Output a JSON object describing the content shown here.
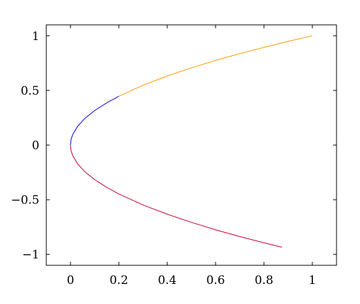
{
  "chart_data": {
    "type": "line",
    "title": "",
    "xlabel": "",
    "ylabel": "",
    "xlim": [
      -0.1,
      1.1
    ],
    "ylim": [
      -1.1,
      1.1
    ],
    "grid": false,
    "x_ticks": [
      0,
      0.2,
      0.4,
      0.6,
      0.8,
      1
    ],
    "x_tick_labels": [
      "0",
      "0.2",
      "0.4",
      "0.6",
      "0.8",
      "1"
    ],
    "y_ticks": [
      -1,
      -0.5,
      0,
      0.5,
      1
    ],
    "y_tick_labels": [
      "−1",
      "−0.5",
      "0",
      "0.5",
      "1"
    ],
    "series": [
      {
        "color": "#0000ff",
        "x": [
          0.2,
          0.15,
          0.1,
          0.06,
          0.03,
          0.01,
          0.003,
          0
        ],
        "y": [
          0.447,
          0.387,
          0.316,
          0.245,
          0.173,
          0.1,
          0.055,
          0
        ]
      },
      {
        "color": "#ff9900",
        "x": [
          0.2,
          0.3,
          0.4,
          0.5,
          0.6,
          0.7,
          0.8,
          0.9,
          1.0
        ],
        "y": [
          0.447,
          0.548,
          0.632,
          0.707,
          0.775,
          0.837,
          0.894,
          0.949,
          1.0
        ]
      },
      {
        "color": "#c8002a",
        "x": [
          0,
          0.003,
          0.01,
          0.03,
          0.06,
          0.1,
          0.15,
          0.2,
          0.3,
          0.4,
          0.5,
          0.6,
          0.7,
          0.8,
          0.875
        ],
        "y": [
          0,
          -0.055,
          -0.1,
          -0.173,
          -0.245,
          -0.316,
          -0.387,
          -0.447,
          -0.548,
          -0.632,
          -0.707,
          -0.775,
          -0.837,
          -0.894,
          -0.935
        ]
      }
    ]
  }
}
